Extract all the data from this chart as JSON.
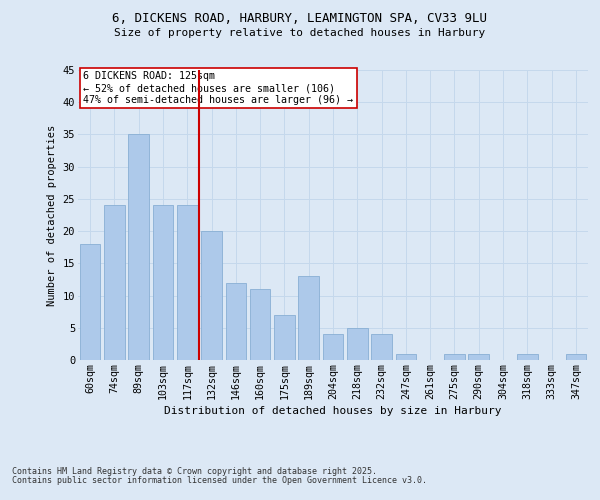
{
  "title_line1": "6, DICKENS ROAD, HARBURY, LEAMINGTON SPA, CV33 9LU",
  "title_line2": "Size of property relative to detached houses in Harbury",
  "xlabel": "Distribution of detached houses by size in Harbury",
  "ylabel": "Number of detached properties",
  "footnote1": "Contains HM Land Registry data © Crown copyright and database right 2025.",
  "footnote2": "Contains public sector information licensed under the Open Government Licence v3.0.",
  "categories": [
    "60sqm",
    "74sqm",
    "89sqm",
    "103sqm",
    "117sqm",
    "132sqm",
    "146sqm",
    "160sqm",
    "175sqm",
    "189sqm",
    "204sqm",
    "218sqm",
    "232sqm",
    "247sqm",
    "261sqm",
    "275sqm",
    "290sqm",
    "304sqm",
    "318sqm",
    "333sqm",
    "347sqm"
  ],
  "values": [
    18,
    24,
    35,
    24,
    24,
    20,
    12,
    11,
    7,
    13,
    4,
    5,
    4,
    1,
    0,
    1,
    1,
    0,
    1,
    0,
    1
  ],
  "bar_color": "#adc9ea",
  "bar_edge_color": "#89afd4",
  "grid_color": "#c5d8ec",
  "background_color": "#dce8f5",
  "vline_x": 4.5,
  "vline_color": "#cc0000",
  "annotation_text": "6 DICKENS ROAD: 125sqm\n← 52% of detached houses are smaller (106)\n47% of semi-detached houses are larger (96) →",
  "annotation_box_color": "#ffffff",
  "annotation_box_edge": "#cc0000",
  "ylim": [
    0,
    45
  ],
  "yticks": [
    0,
    5,
    10,
    15,
    20,
    25,
    30,
    35,
    40,
    45
  ]
}
